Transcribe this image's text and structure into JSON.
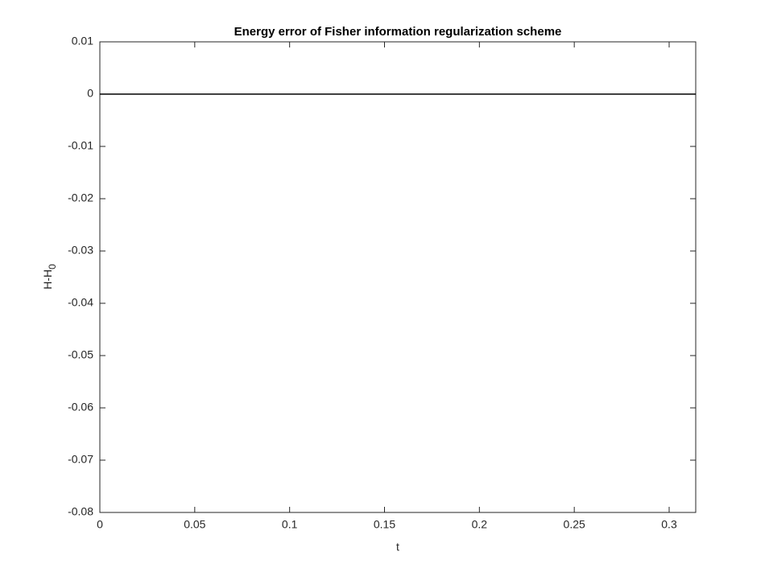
{
  "chart_data": {
    "type": "line",
    "title": "Energy error of Fisher information regularization scheme",
    "xlabel": "t",
    "ylabel": "H-H",
    "ylabel_subscript": "0",
    "x": [
      0,
      0.05,
      0.1,
      0.15,
      0.2,
      0.25,
      0.3,
      0.314
    ],
    "series": [
      {
        "color": "#000000",
        "values": [
          0,
          0,
          0,
          0,
          0,
          0,
          0,
          0
        ]
      }
    ],
    "xlim": [
      0,
      0.314
    ],
    "ylim": [
      -0.08,
      0.01
    ],
    "xticks": [
      0,
      0.05,
      0.1,
      0.15,
      0.2,
      0.25,
      0.3
    ],
    "yticks": [
      -0.08,
      -0.07,
      -0.06,
      -0.05,
      -0.04,
      -0.03,
      -0.02,
      -0.01,
      0,
      0.01
    ],
    "grid": false
  }
}
